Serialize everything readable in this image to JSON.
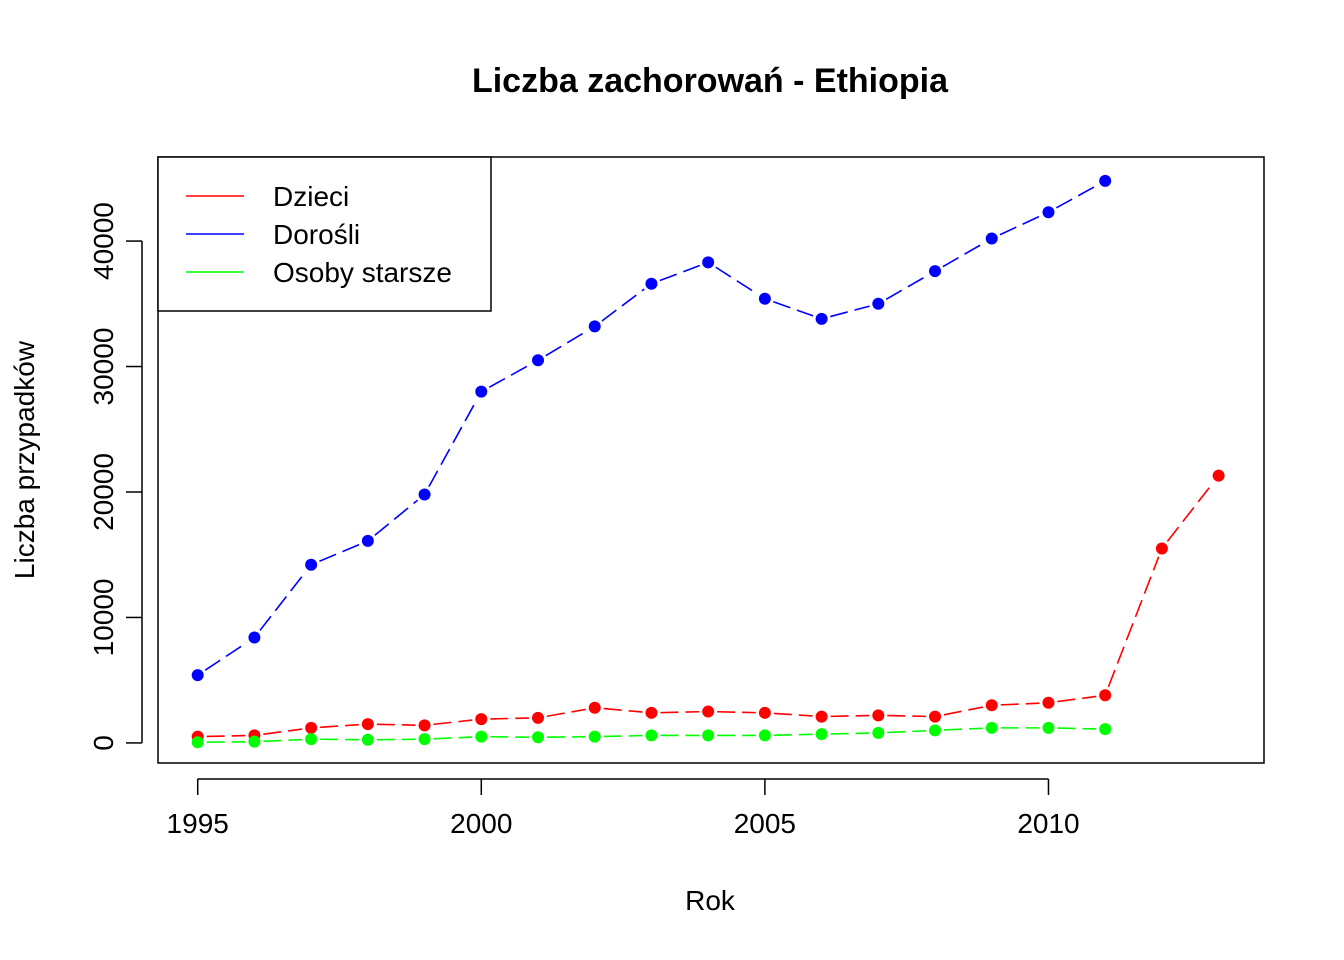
{
  "chart_data": {
    "type": "line",
    "title": "Liczba zachorowań -  Ethiopia",
    "xlabel": "Rok",
    "ylabel": "Liczba przypadków",
    "xlim": [
      1994.3,
      2013.8
    ],
    "ylim": [
      -1600,
      46700
    ],
    "xticks": [
      1995,
      2000,
      2005,
      2010
    ],
    "yticks": [
      0,
      10000,
      20000,
      30000,
      40000
    ],
    "grid": false,
    "legend_position": "top-left",
    "series": [
      {
        "name": "Dzieci",
        "color": "#ff0000",
        "x": [
          1995,
          1996,
          1997,
          1998,
          1999,
          2000,
          2001,
          2002,
          2003,
          2004,
          2005,
          2006,
          2007,
          2008,
          2009,
          2010,
          2011,
          2012,
          2013
        ],
        "values": [
          500,
          600,
          1200,
          1500,
          1400,
          1900,
          2000,
          2800,
          2400,
          2500,
          2400,
          2100,
          2200,
          2100,
          3000,
          3200,
          3800,
          15500,
          21300
        ]
      },
      {
        "name": "Dorośli",
        "color": "#0000ff",
        "x": [
          1995,
          1996,
          1997,
          1998,
          1999,
          2000,
          2001,
          2002,
          2003,
          2004,
          2005,
          2006,
          2007,
          2008,
          2009,
          2010,
          2011
        ],
        "values": [
          5400,
          8400,
          14200,
          16100,
          19800,
          28000,
          30500,
          33200,
          36600,
          38300,
          35400,
          33800,
          35000,
          37600,
          40200,
          42300,
          44800
        ]
      },
      {
        "name": "Osoby starsze",
        "color": "#00ff00",
        "x": [
          1995,
          1996,
          1997,
          1998,
          1999,
          2000,
          2001,
          2002,
          2003,
          2004,
          2005,
          2006,
          2007,
          2008,
          2009,
          2010,
          2011
        ],
        "values": [
          50,
          100,
          300,
          250,
          300,
          500,
          450,
          500,
          600,
          600,
          600,
          700,
          800,
          1000,
          1200,
          1200,
          1100
        ]
      }
    ]
  }
}
